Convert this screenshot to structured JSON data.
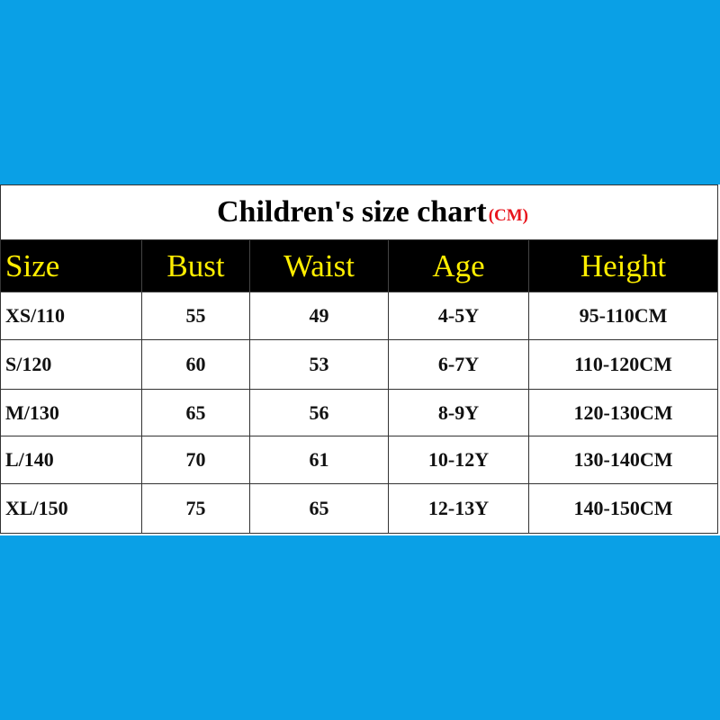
{
  "table": {
    "title": "Children's size chart",
    "unit": "(CM)",
    "header": [
      "Size",
      "Bust",
      "Waist",
      "Age",
      "Height"
    ],
    "rows": [
      [
        "XS/110",
        "55",
        "49",
        "4-5Y",
        "95-110CM"
      ],
      [
        "S/120",
        "60",
        "53",
        "6-7Y",
        "110-120CM"
      ],
      [
        "M/130",
        "65",
        "56",
        "8-9Y",
        "120-130CM"
      ],
      [
        "L/140",
        "70",
        "61",
        "10-12Y",
        "130-140CM"
      ],
      [
        "XL/150",
        "75",
        "65",
        "12-13Y",
        "140-150CM"
      ]
    ]
  }
}
